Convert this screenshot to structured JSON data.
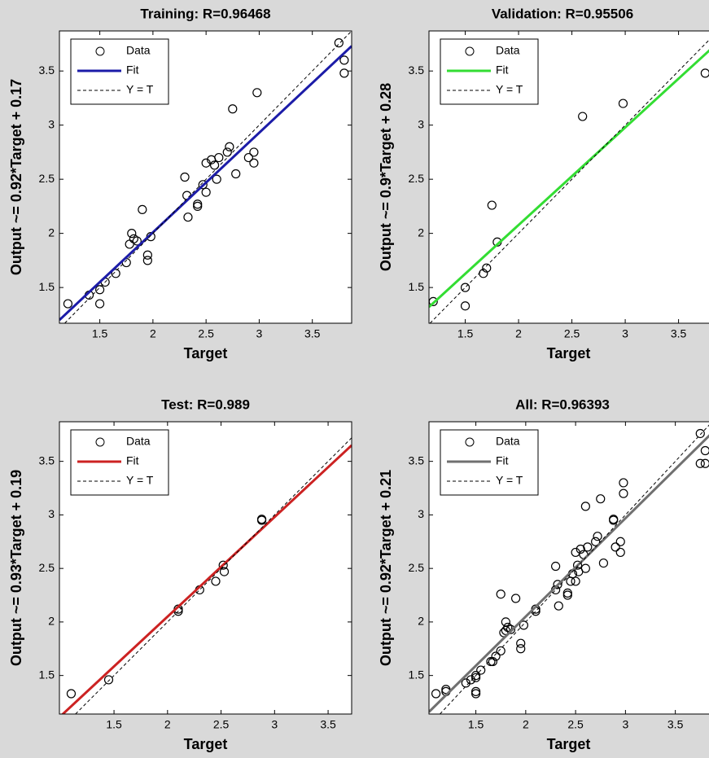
{
  "chart_data": [
    {
      "type": "scatter",
      "title": "Training: R=0.96468",
      "xlabel": "Target",
      "ylabel": "Output ~= 0.92*Target + 0.17",
      "legend": "upper left",
      "xlim": [
        1.12,
        3.87
      ],
      "ylim": [
        1.17,
        3.87
      ],
      "xticks": [
        1.5,
        2,
        2.5,
        3,
        3.5
      ],
      "yticks": [
        1.5,
        2,
        2.5,
        3,
        3.5
      ],
      "series": [
        {
          "name": "Data",
          "color": "#000000",
          "x": [
            1.2,
            1.4,
            1.5,
            1.5,
            1.55,
            1.65,
            1.75,
            1.78,
            1.8,
            1.82,
            1.85,
            1.9,
            1.95,
            1.95,
            1.98,
            2.3,
            2.32,
            2.33,
            2.42,
            2.42,
            2.47,
            2.5,
            2.5,
            2.55,
            2.58,
            2.6,
            2.62,
            2.7,
            2.72,
            2.75,
            2.78,
            2.9,
            2.95,
            2.95,
            2.98,
            3.75,
            3.8,
            3.8
          ],
          "values": [
            1.35,
            1.43,
            1.35,
            1.48,
            1.55,
            1.63,
            1.73,
            1.9,
            2.0,
            1.95,
            1.93,
            2.22,
            1.75,
            1.8,
            1.97,
            2.52,
            2.35,
            2.15,
            2.25,
            2.27,
            2.45,
            2.38,
            2.65,
            2.68,
            2.63,
            2.5,
            2.7,
            2.75,
            2.8,
            3.15,
            2.55,
            2.7,
            2.65,
            2.75,
            3.3,
            3.76,
            3.6,
            3.48
          ]
        },
        {
          "name": "Fit",
          "color": "#1c1ca8",
          "x": [
            1.12,
            3.87
          ],
          "values": [
            1.2,
            3.73
          ]
        },
        {
          "name": "Y = T",
          "color": "#000000",
          "dashed": true
        }
      ]
    },
    {
      "type": "scatter",
      "title": "Validation: R=0.95506",
      "xlabel": "Target",
      "ylabel": "Output ~= 0.9*Target + 0.28",
      "legend": "upper left",
      "xlim": [
        1.16,
        3.9
      ],
      "ylim": [
        1.17,
        3.87
      ],
      "xticks": [
        1.5,
        2,
        2.5,
        3,
        3.5
      ],
      "yticks": [
        1.5,
        2,
        2.5,
        3,
        3.5
      ],
      "series": [
        {
          "name": "Data",
          "color": "#000000",
          "x": [
            1.2,
            1.5,
            1.5,
            1.67,
            1.7,
            1.75,
            1.8,
            2.6,
            2.98,
            3.75
          ],
          "values": [
            1.37,
            1.5,
            1.33,
            1.63,
            1.68,
            2.26,
            1.92,
            3.08,
            3.2,
            3.48
          ]
        },
        {
          "name": "Fit",
          "color": "#33dd33",
          "x": [
            1.16,
            3.9
          ],
          "values": [
            1.32,
            3.79
          ]
        },
        {
          "name": "Y = T",
          "color": "#000000",
          "dashed": true
        }
      ]
    },
    {
      "type": "scatter",
      "title": "Test: R=0.989",
      "xlabel": "Target",
      "ylabel": "Output ~= 0.93*Target + 0.19",
      "legend": "upper left",
      "xlim": [
        0.99,
        3.72
      ],
      "ylim": [
        1.14,
        3.87
      ],
      "xticks": [
        1.5,
        2,
        2.5,
        3,
        3.5
      ],
      "yticks": [
        1.5,
        2,
        2.5,
        3,
        3.5
      ],
      "series": [
        {
          "name": "Data",
          "color": "#000000",
          "x": [
            1.1,
            1.45,
            2.1,
            2.1,
            2.3,
            2.45,
            2.52,
            2.53,
            2.88,
            2.88
          ],
          "values": [
            1.33,
            1.46,
            2.1,
            2.12,
            2.3,
            2.38,
            2.53,
            2.47,
            2.96,
            2.95
          ]
        },
        {
          "name": "Fit",
          "color": "#cc2222",
          "x": [
            0.99,
            3.72
          ],
          "values": [
            1.11,
            3.65
          ]
        },
        {
          "name": "Y = T",
          "color": "#000000",
          "dashed": true
        }
      ]
    },
    {
      "type": "scatter",
      "title": "All: R=0.96393",
      "xlabel": "Target",
      "ylabel": "Output ~= 0.92*Target + 0.21",
      "legend": "upper left",
      "xlim": [
        1.03,
        3.96
      ],
      "ylim": [
        1.14,
        3.87
      ],
      "xticks": [
        1.5,
        2,
        2.5,
        3,
        3.5
      ],
      "yticks": [
        1.5,
        2,
        2.5,
        3,
        3.5
      ],
      "series": [
        {
          "name": "Data",
          "color": "#000000",
          "x": [
            1.2,
            1.4,
            1.5,
            1.5,
            1.55,
            1.65,
            1.75,
            1.78,
            1.8,
            1.82,
            1.85,
            1.9,
            1.95,
            1.95,
            1.98,
            2.3,
            2.32,
            2.33,
            2.42,
            2.42,
            2.47,
            2.5,
            2.5,
            2.55,
            2.58,
            2.6,
            2.62,
            2.7,
            2.72,
            2.75,
            2.78,
            2.9,
            2.95,
            2.95,
            2.98,
            3.75,
            3.8,
            3.8,
            1.2,
            1.5,
            1.5,
            1.67,
            1.7,
            1.75,
            1.8,
            2.6,
            2.98,
            3.75,
            1.1,
            1.45,
            2.1,
            2.1,
            2.3,
            2.45,
            2.52,
            2.53,
            2.88,
            2.88
          ],
          "values": [
            1.35,
            1.43,
            1.35,
            1.48,
            1.55,
            1.63,
            1.73,
            1.9,
            2.0,
            1.95,
            1.93,
            2.22,
            1.75,
            1.8,
            1.97,
            2.52,
            2.35,
            2.15,
            2.25,
            2.27,
            2.45,
            2.38,
            2.65,
            2.68,
            2.63,
            2.5,
            2.7,
            2.75,
            2.8,
            3.15,
            2.55,
            2.7,
            2.65,
            2.75,
            3.3,
            3.76,
            3.6,
            3.48,
            1.37,
            1.5,
            1.33,
            1.63,
            1.68,
            2.26,
            1.92,
            3.08,
            3.2,
            3.48,
            1.33,
            1.46,
            2.1,
            2.12,
            2.3,
            2.38,
            2.53,
            2.47,
            2.96,
            2.95
          ]
        },
        {
          "name": "Fit",
          "color": "#707070",
          "x": [
            1.03,
            3.96
          ],
          "values": [
            1.16,
            3.85
          ]
        },
        {
          "name": "Y = T",
          "color": "#000000",
          "dashed": true
        }
      ]
    }
  ]
}
